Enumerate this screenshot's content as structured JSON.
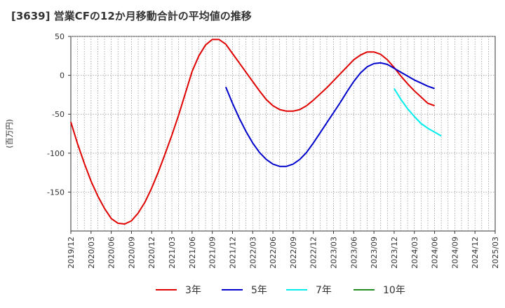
{
  "chart_data": {
    "type": "line",
    "title": "[3639]  営業CFの12か月移動合計の平均値の推移",
    "ylabel": "(百万円)",
    "xlabel": "",
    "ylim": [
      -200,
      50
    ],
    "yticks": [
      50,
      0,
      -50,
      -100,
      -150
    ],
    "x_ticks": [
      "2019/12",
      "2020/03",
      "2020/06",
      "2020/09",
      "2020/12",
      "2021/03",
      "2021/06",
      "2021/09",
      "2021/12",
      "2022/03",
      "2022/06",
      "2022/09",
      "2022/12",
      "2023/03",
      "2023/06",
      "2023/09",
      "2023/12",
      "2024/03",
      "2024/06",
      "2024/09",
      "2024/12",
      "2025/03"
    ],
    "grid": true,
    "legend_position": "bottom",
    "series": [
      {
        "name": "3年",
        "color": "#e00000",
        "points": [
          [
            "2019/12",
            -60
          ],
          [
            "2020/01",
            -88
          ],
          [
            "2020/02",
            -113
          ],
          [
            "2020/03",
            -136
          ],
          [
            "2020/04",
            -155
          ],
          [
            "2020/05",
            -171
          ],
          [
            "2020/06",
            -184
          ],
          [
            "2020/07",
            -190
          ],
          [
            "2020/08",
            -191
          ],
          [
            "2020/09",
            -187
          ],
          [
            "2020/10",
            -177
          ],
          [
            "2020/11",
            -163
          ],
          [
            "2020/12",
            -145
          ],
          [
            "2021/01",
            -124
          ],
          [
            "2021/02",
            -101
          ],
          [
            "2021/03",
            -77
          ],
          [
            "2021/04",
            -51
          ],
          [
            "2021/05",
            -23
          ],
          [
            "2021/06",
            5
          ],
          [
            "2021/07",
            25
          ],
          [
            "2021/08",
            39
          ],
          [
            "2021/09",
            46
          ],
          [
            "2021/10",
            46
          ],
          [
            "2021/11",
            40
          ],
          [
            "2021/12",
            28
          ],
          [
            "2022/01",
            16
          ],
          [
            "2022/02",
            4
          ],
          [
            "2022/03",
            -8
          ],
          [
            "2022/04",
            -20
          ],
          [
            "2022/05",
            -31
          ],
          [
            "2022/06",
            -39
          ],
          [
            "2022/07",
            -44
          ],
          [
            "2022/08",
            -46
          ],
          [
            "2022/09",
            -46
          ],
          [
            "2022/10",
            -44
          ],
          [
            "2022/11",
            -39
          ],
          [
            "2022/12",
            -32
          ],
          [
            "2023/01",
            -24
          ],
          [
            "2023/02",
            -16
          ],
          [
            "2023/03",
            -7
          ],
          [
            "2023/04",
            2
          ],
          [
            "2023/05",
            11
          ],
          [
            "2023/06",
            20
          ],
          [
            "2023/07",
            26
          ],
          [
            "2023/08",
            30
          ],
          [
            "2023/09",
            30
          ],
          [
            "2023/10",
            27
          ],
          [
            "2023/11",
            20
          ],
          [
            "2023/12",
            10
          ],
          [
            "2024/01",
            -1
          ],
          [
            "2024/02",
            -11
          ],
          [
            "2024/03",
            -20
          ],
          [
            "2024/04",
            -28
          ],
          [
            "2024/05",
            -36
          ],
          [
            "2024/06",
            -39
          ]
        ]
      },
      {
        "name": "5年",
        "color": "#0000cc",
        "points": [
          [
            "2021/11",
            -15
          ],
          [
            "2021/12",
            -36
          ],
          [
            "2022/01",
            -55
          ],
          [
            "2022/02",
            -72
          ],
          [
            "2022/03",
            -87
          ],
          [
            "2022/04",
            -99
          ],
          [
            "2022/05",
            -108
          ],
          [
            "2022/06",
            -114
          ],
          [
            "2022/07",
            -117
          ],
          [
            "2022/08",
            -117
          ],
          [
            "2022/09",
            -114
          ],
          [
            "2022/10",
            -108
          ],
          [
            "2022/11",
            -99
          ],
          [
            "2022/12",
            -87
          ],
          [
            "2023/01",
            -74
          ],
          [
            "2023/02",
            -61
          ],
          [
            "2023/03",
            -48
          ],
          [
            "2023/04",
            -35
          ],
          [
            "2023/05",
            -21
          ],
          [
            "2023/06",
            -8
          ],
          [
            "2023/07",
            3
          ],
          [
            "2023/08",
            11
          ],
          [
            "2023/09",
            15
          ],
          [
            "2023/10",
            16
          ],
          [
            "2023/11",
            14
          ],
          [
            "2023/12",
            9
          ],
          [
            "2024/01",
            4
          ],
          [
            "2024/02",
            -1
          ],
          [
            "2024/03",
            -6
          ],
          [
            "2024/04",
            -10
          ],
          [
            "2024/05",
            -14
          ],
          [
            "2024/06",
            -17
          ]
        ]
      },
      {
        "name": "7年",
        "color": "#00eeee",
        "points": [
          [
            "2023/12",
            -17
          ],
          [
            "2024/01",
            -31
          ],
          [
            "2024/02",
            -43
          ],
          [
            "2024/03",
            -53
          ],
          [
            "2024/04",
            -62
          ],
          [
            "2024/05",
            -68
          ],
          [
            "2024/06",
            -73
          ],
          [
            "2024/07",
            -78
          ]
        ]
      },
      {
        "name": "10年",
        "color": "#228b22",
        "points": []
      }
    ]
  }
}
